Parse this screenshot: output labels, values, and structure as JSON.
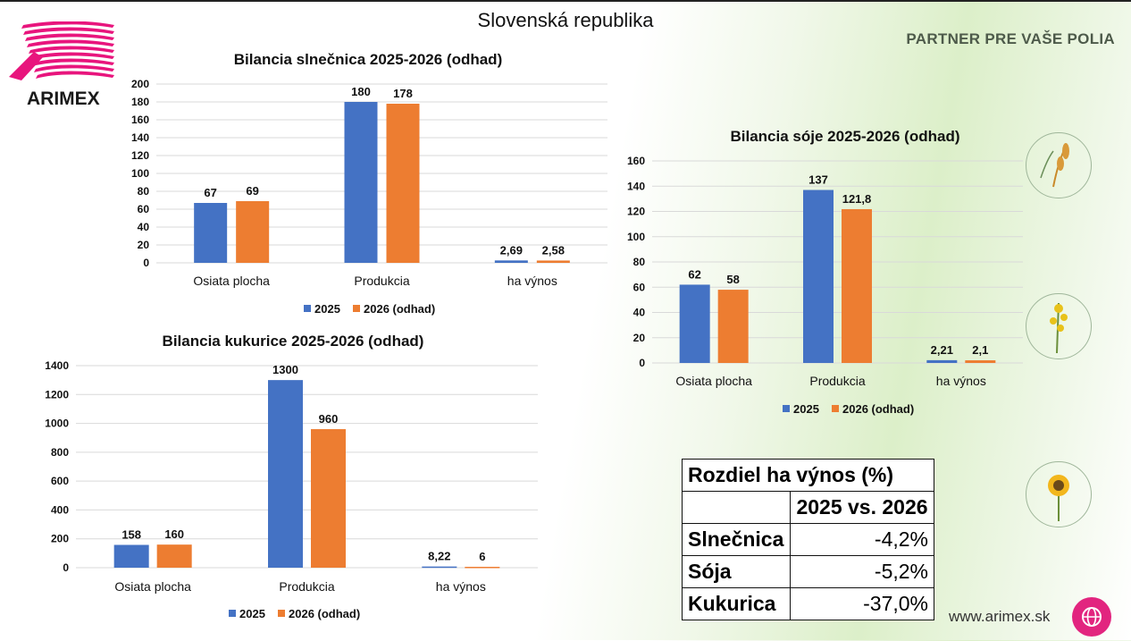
{
  "page": {
    "title": "Slovenská republika",
    "tagline": "PARTNER PRE VAŠE POLIA",
    "brand": "ARIMEX",
    "website": "www.arimex.sk"
  },
  "colors": {
    "s2025": "#4472c4",
    "s2026": "#ed7d31",
    "logo": "#e8157d"
  },
  "chart_data": [
    {
      "id": "slnecnica",
      "type": "bar",
      "title": "Bilancia slnečnica 2025-2026 (odhad)",
      "categories": [
        "Osiata plocha",
        "Produkcia",
        "ha výnos"
      ],
      "series": [
        {
          "name": "2025",
          "values": [
            67,
            180,
            2.69
          ],
          "labels": [
            "67",
            "180",
            "2,69"
          ]
        },
        {
          "name": "2026 (odhad)",
          "values": [
            69,
            178,
            2.58
          ],
          "labels": [
            "69",
            "178",
            "2,58"
          ]
        }
      ],
      "ylim": [
        0,
        200
      ],
      "yticks": [
        0,
        20,
        40,
        60,
        80,
        100,
        120,
        140,
        160,
        180,
        200
      ],
      "grid": true,
      "legend": "bottom"
    },
    {
      "id": "soja",
      "type": "bar",
      "title": "Bilancia sóje 2025-2026 (odhad)",
      "categories": [
        "Osiata plocha",
        "Produkcia",
        "ha výnos"
      ],
      "series": [
        {
          "name": "2025",
          "values": [
            62,
            137,
            2.21
          ],
          "labels": [
            "62",
            "137",
            "2,21"
          ]
        },
        {
          "name": "2026 (odhad)",
          "values": [
            58,
            121.8,
            2.1
          ],
          "labels": [
            "58",
            "121,8",
            "2,1"
          ]
        }
      ],
      "ylim": [
        0,
        160
      ],
      "yticks": [
        0,
        20,
        40,
        60,
        80,
        100,
        120,
        140,
        160
      ],
      "grid": true,
      "legend": "bottom"
    },
    {
      "id": "kukurica",
      "type": "bar",
      "title": "Bilancia kukurice 2025-2026 (odhad)",
      "categories": [
        "Osiata plocha",
        "Produkcia",
        "ha výnos"
      ],
      "series": [
        {
          "name": "2025",
          "values": [
            158,
            1300,
            8.22
          ],
          "labels": [
            "158",
            "1300",
            "8,22"
          ]
        },
        {
          "name": "2026 (odhad)",
          "values": [
            160,
            960,
            6
          ],
          "labels": [
            "160",
            "960",
            "6"
          ]
        }
      ],
      "ylim": [
        0,
        1400
      ],
      "yticks": [
        0,
        200,
        400,
        600,
        800,
        1000,
        1200,
        1400
      ],
      "grid": true,
      "legend": "bottom"
    }
  ],
  "table": {
    "title": "Rozdiel ha výnos (%)",
    "subheader": "2025 vs. 2026",
    "rows": [
      {
        "label": "Slnečnica",
        "value": "-4,2%"
      },
      {
        "label": "Sója",
        "value": "-5,2%"
      },
      {
        "label": "Kukurica",
        "value": "-37,0%"
      }
    ]
  }
}
